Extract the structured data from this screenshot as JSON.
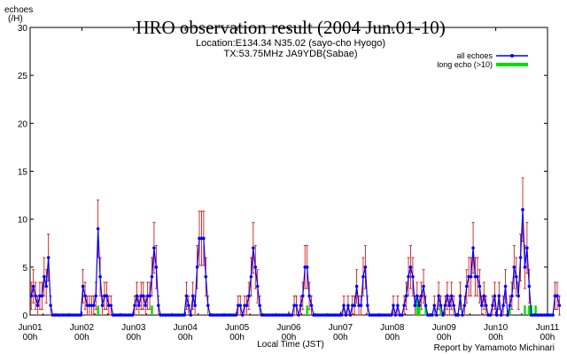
{
  "chart_data": {
    "type": "line",
    "title": "HRO observation result (2004 Jun.01-10)",
    "subtitle": [
      "Location:E134.34 N35.02 (sayo-cho Hyogo)",
      "TX:53.75MHz JA9YDB(Sabae)"
    ],
    "ylabel": "echoes",
    "ylabel_unit": "(/H)",
    "xlabel": "Local Time (JST)",
    "footer": "Report by Yamamoto Michinari",
    "xlim_hours": [
      0,
      240
    ],
    "ylim": [
      0,
      30
    ],
    "y_ticks": [
      "0",
      "5",
      "10",
      "15",
      "20",
      "25",
      "30"
    ],
    "x_ticks": [
      {
        "day": "Jun01",
        "hour": "00h"
      },
      {
        "day": "Jun02",
        "hour": "00h"
      },
      {
        "day": "Jun03",
        "hour": "00h"
      },
      {
        "day": "Jun04",
        "hour": "00h"
      },
      {
        "day": "Jun05",
        "hour": "00h"
      },
      {
        "day": "Jun06",
        "hour": "00h"
      },
      {
        "day": "Jun07",
        "hour": "00h"
      },
      {
        "day": "Jun08",
        "hour": "00h"
      },
      {
        "day": "Jun09",
        "hour": "00h"
      },
      {
        "day": "Jun10",
        "hour": "00h"
      },
      {
        "day": "Jun11",
        "hour": "00h"
      }
    ],
    "legend_position": "top-right",
    "series": [
      {
        "name": "all echoes",
        "color": "#0000ff",
        "error_bar_color": "#cc0000",
        "values": [
          2,
          3,
          2,
          1,
          2,
          2,
          4,
          3,
          6,
          1,
          0,
          0,
          0,
          0,
          0,
          0,
          0,
          0,
          0,
          0,
          0,
          0,
          0,
          0,
          3,
          2,
          1,
          1,
          1,
          1,
          2,
          9,
          4,
          1,
          2,
          2,
          1,
          1,
          0,
          0,
          0,
          0,
          0,
          0,
          0,
          0,
          0,
          0,
          1,
          2,
          1,
          2,
          2,
          1,
          2,
          2,
          4,
          7,
          5,
          1,
          0,
          0,
          0,
          0,
          0,
          0,
          0,
          0,
          0,
          0,
          0,
          0,
          2,
          1,
          0,
          2,
          1,
          5,
          8,
          8,
          8,
          4,
          1,
          0,
          0,
          0,
          0,
          0,
          0,
          0,
          0,
          0,
          0,
          0,
          0,
          0,
          1,
          1,
          0,
          1,
          1,
          2,
          4,
          7,
          5,
          3,
          1,
          0,
          0,
          0,
          0,
          0,
          0,
          0,
          0,
          0,
          0,
          0,
          0,
          0,
          0,
          0,
          1,
          1,
          0,
          1,
          2,
          5,
          5,
          2,
          1,
          0,
          0,
          0,
          0,
          0,
          0,
          0,
          0,
          0,
          0,
          0,
          0,
          0,
          0,
          1,
          0,
          1,
          0,
          1,
          1,
          3,
          1,
          1,
          4,
          5,
          1,
          0,
          0,
          0,
          0,
          0,
          0,
          0,
          0,
          0,
          0,
          0,
          1,
          0,
          1,
          0,
          0,
          1,
          2,
          4,
          5,
          4,
          1,
          2,
          1,
          2,
          3,
          1,
          0,
          0,
          0,
          1,
          0,
          2,
          1,
          0,
          1,
          2,
          1,
          2,
          1,
          0,
          0,
          2,
          0,
          1,
          3,
          4,
          4,
          7,
          4,
          4,
          3,
          1,
          2,
          1,
          0,
          0,
          1,
          2,
          0,
          2,
          0,
          1,
          3,
          0,
          1,
          2,
          5,
          4,
          2,
          6,
          11,
          5,
          7,
          3,
          0,
          0,
          0,
          0,
          0,
          0,
          0,
          0,
          0,
          0,
          0,
          2,
          2,
          1
        ]
      },
      {
        "name": "long echo (>10)",
        "color": "#00dd00",
        "values": [
          0,
          0,
          0,
          0,
          0,
          0,
          0,
          0,
          0,
          0,
          0,
          0,
          0,
          0,
          0,
          0,
          0,
          0,
          0,
          0,
          0,
          0,
          0,
          0,
          0,
          0,
          0,
          0,
          0,
          0,
          0,
          1,
          0,
          0,
          0,
          0,
          0,
          0,
          0,
          0,
          0,
          0,
          0,
          0,
          0,
          0,
          0,
          0,
          0,
          0,
          0,
          0,
          0,
          0,
          0,
          0,
          1,
          0,
          0,
          0,
          0,
          0,
          0,
          0,
          0,
          0,
          0,
          0,
          0,
          0,
          0,
          0,
          0,
          0,
          0,
          0,
          0,
          0,
          0,
          0,
          0,
          0,
          0,
          0,
          0,
          0,
          0,
          0,
          0,
          0,
          0,
          0,
          0,
          0,
          0,
          0,
          0,
          0,
          0,
          0,
          0,
          0,
          0,
          0,
          0,
          0,
          0,
          0,
          0,
          0,
          0,
          0,
          0,
          0,
          0,
          0,
          0,
          0,
          0,
          0,
          0,
          0,
          0,
          0,
          0,
          0,
          0,
          0,
          1,
          0,
          0,
          0,
          0,
          0,
          0,
          0,
          0,
          0,
          0,
          0,
          0,
          0,
          0,
          0,
          0,
          0,
          0,
          0,
          0,
          0,
          0,
          0,
          0,
          0,
          0,
          0,
          0,
          0,
          0,
          0,
          0,
          0,
          0,
          0,
          0,
          0,
          0,
          0,
          0,
          0,
          0,
          0,
          0,
          0,
          0,
          0,
          0,
          0,
          0,
          2,
          1,
          0,
          0,
          1,
          0,
          0,
          0,
          0,
          0,
          0,
          1,
          0,
          0,
          0,
          0,
          0,
          0,
          0,
          0,
          0,
          0,
          0,
          0,
          0,
          0,
          0,
          0,
          0,
          0,
          0,
          0,
          0,
          0,
          0,
          0,
          0,
          0,
          0,
          0,
          0,
          0,
          0,
          1,
          0,
          0,
          0,
          0,
          0,
          0,
          1,
          0,
          1,
          1,
          0,
          1,
          0,
          0,
          0,
          0,
          0,
          0,
          0,
          0,
          0,
          0,
          0,
          0,
          0,
          0,
          0,
          0,
          0
        ]
      }
    ]
  }
}
